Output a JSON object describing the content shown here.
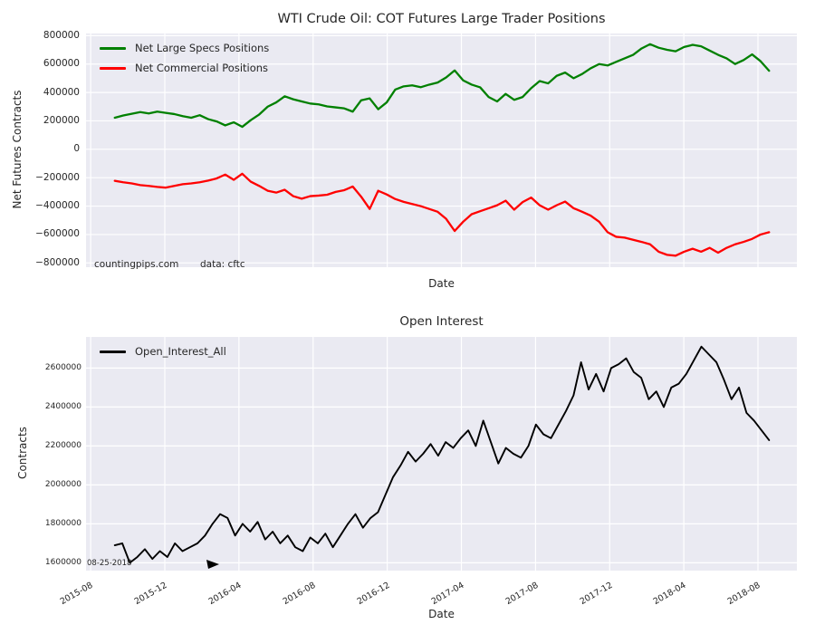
{
  "colors": {
    "figure_bg": "#ffffff",
    "axes_bg": "#eaeaf2",
    "grid": "#ffffff",
    "text": "#262626",
    "specs_line": "#008000",
    "commercials_line": "#ff0000",
    "open_interest_line": "#000000"
  },
  "chart_data": [
    {
      "type": "line",
      "title": "WTI Crude Oil: COT Futures Large Trader Positions",
      "xlabel": "Date",
      "ylabel": "Net Futures Contracts",
      "grid": true,
      "legend_position": "upper left",
      "x_tick_labels": [
        "2015-08",
        "2015-12",
        "2016-04",
        "2016-08",
        "2016-12",
        "2017-04",
        "2017-08",
        "2017-12",
        "2018-04",
        "2018-08"
      ],
      "x_tick_months": [
        0,
        4,
        8,
        12,
        16,
        20,
        24,
        28,
        32,
        36
      ],
      "show_x_tick_labels": false,
      "xlim_months": [
        -0.25,
        38.1
      ],
      "ylim": [
        -830000,
        815000
      ],
      "yticks": [
        800000,
        600000,
        400000,
        200000,
        0,
        -200000,
        -400000,
        -600000,
        -800000
      ],
      "data_month_span": [
        1.3,
        36.6
      ],
      "annotations": [
        "countingpips.com",
        "data: cftc"
      ],
      "series": [
        {
          "name": "Net Large Specs Positions",
          "color": "#008000",
          "line_width": 2.3,
          "values": [
            222000,
            238000,
            250000,
            262000,
            252000,
            265000,
            256000,
            248000,
            233000,
            222000,
            240000,
            212000,
            196000,
            168000,
            190000,
            158000,
            205000,
            245000,
            300000,
            330000,
            373000,
            352000,
            337000,
            322000,
            316000,
            302000,
            295000,
            288000,
            265000,
            345000,
            358000,
            282000,
            330000,
            420000,
            443000,
            450000,
            437000,
            455000,
            470000,
            506000,
            555000,
            485000,
            455000,
            436000,
            368000,
            337000,
            390000,
            348000,
            368000,
            430000,
            480000,
            464000,
            517000,
            540000,
            500000,
            530000,
            570000,
            600000,
            590000,
            615000,
            640000,
            665000,
            710000,
            740000,
            715000,
            700000,
            690000,
            720000,
            735000,
            725000,
            695000,
            665000,
            640000,
            600000,
            628000,
            668000,
            620000,
            553000
          ]
        },
        {
          "name": "Net Commercial Positions",
          "color": "#ff0000",
          "line_width": 2.3,
          "values": [
            -222000,
            -232000,
            -240000,
            -252000,
            -258000,
            -265000,
            -270000,
            -258000,
            -246000,
            -240000,
            -232000,
            -220000,
            -205000,
            -178000,
            -215000,
            -172000,
            -228000,
            -258000,
            -292000,
            -305000,
            -285000,
            -330000,
            -348000,
            -330000,
            -326000,
            -320000,
            -300000,
            -288000,
            -262000,
            -334000,
            -420000,
            -292000,
            -318000,
            -350000,
            -370000,
            -385000,
            -400000,
            -420000,
            -440000,
            -490000,
            -575000,
            -510000,
            -457000,
            -436000,
            -415000,
            -394000,
            -362000,
            -425000,
            -372000,
            -340000,
            -394000,
            -425000,
            -394000,
            -368000,
            -415000,
            -440000,
            -467000,
            -510000,
            -584000,
            -616000,
            -622000,
            -637000,
            -652000,
            -669000,
            -721000,
            -743000,
            -749000,
            -721000,
            -700000,
            -721000,
            -694000,
            -728000,
            -694000,
            -669000,
            -652000,
            -631000,
            -600000,
            -584000
          ]
        }
      ]
    },
    {
      "type": "line",
      "title": "Open Interest",
      "xlabel": "Date",
      "ylabel": "Contracts",
      "grid": true,
      "legend_position": "upper left",
      "x_tick_labels": [
        "2015-08",
        "2015-12",
        "2016-04",
        "2016-08",
        "2016-12",
        "2017-04",
        "2017-08",
        "2017-12",
        "2018-04",
        "2018-08"
      ],
      "x_tick_months": [
        0,
        4,
        8,
        12,
        16,
        20,
        24,
        28,
        32,
        36
      ],
      "show_x_tick_labels": true,
      "xlim_months": [
        -0.25,
        38.1
      ],
      "ylim": [
        1560000,
        2760000
      ],
      "yticks": [
        2600000,
        2400000,
        2200000,
        2000000,
        1800000,
        1600000
      ],
      "data_month_span": [
        1.3,
        36.6
      ],
      "annotations": [
        "08-25-2018"
      ],
      "series": [
        {
          "name": "Open_Interest_All",
          "color": "#000000",
          "line_width": 1.9,
          "values": [
            1690000,
            1700000,
            1600000,
            1630000,
            1670000,
            1620000,
            1660000,
            1630000,
            1700000,
            1660000,
            1680000,
            1700000,
            1740000,
            1800000,
            1850000,
            1830000,
            1740000,
            1800000,
            1760000,
            1810000,
            1720000,
            1760000,
            1700000,
            1740000,
            1680000,
            1660000,
            1730000,
            1700000,
            1750000,
            1680000,
            1740000,
            1800000,
            1850000,
            1780000,
            1830000,
            1860000,
            1950000,
            2040000,
            2100000,
            2170000,
            2120000,
            2160000,
            2210000,
            2150000,
            2220000,
            2190000,
            2240000,
            2280000,
            2200000,
            2330000,
            2220000,
            2110000,
            2190000,
            2160000,
            2140000,
            2200000,
            2310000,
            2260000,
            2240000,
            2310000,
            2380000,
            2460000,
            2630000,
            2490000,
            2570000,
            2480000,
            2600000,
            2620000,
            2650000,
            2580000,
            2550000,
            2440000,
            2480000,
            2400000,
            2500000,
            2520000,
            2570000,
            2640000,
            2710000,
            2670000,
            2630000,
            2540000,
            2440000,
            2500000,
            2370000,
            2330000,
            2280000,
            2230000
          ]
        }
      ]
    }
  ]
}
